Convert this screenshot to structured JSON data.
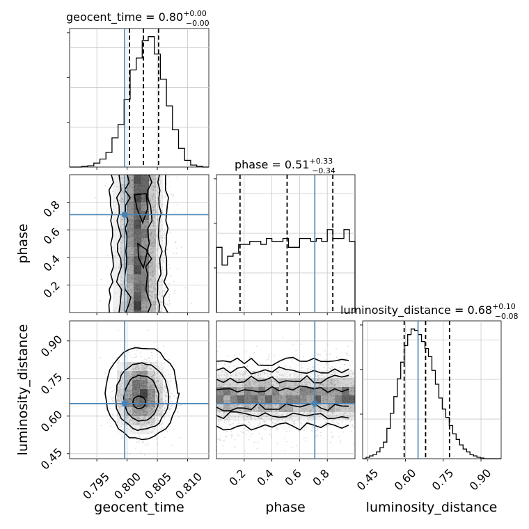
{
  "colors": {
    "truth": "#4682b4",
    "hist": "#000000",
    "quantile": "#000000",
    "grid": "#c8c8c8",
    "points": "#bdbdbd"
  },
  "chart_data": {
    "type": "corner",
    "grid": true,
    "parameters": [
      {
        "name": "geocent_time",
        "median": "0.80",
        "plus": "+0.00",
        "minus": "−0.00",
        "truth": 0.7996,
        "quantiles": [
          0.8004,
          0.8027,
          0.8052
        ],
        "ticks": [
          0.795,
          0.8,
          0.805,
          0.81
        ],
        "tick_labels": [
          "0.795",
          "0.800",
          "0.805",
          "0.810"
        ],
        "range": [
          0.7905,
          0.8135
        ]
      },
      {
        "name": "phase",
        "median": "0.51",
        "plus": "+0.33",
        "minus": "−0.34",
        "truth": 0.71,
        "quantiles": [
          0.17,
          0.51,
          0.84
        ],
        "ticks": [
          0.2,
          0.4,
          0.6,
          0.8
        ],
        "tick_labels": [
          "0.2",
          "0.4",
          "0.6",
          "0.8"
        ],
        "range": [
          0.0,
          1.0
        ]
      },
      {
        "name": "luminosity_distance",
        "median": "0.68",
        "plus": "+0.10",
        "minus": "−0.08",
        "truth": 0.65,
        "quantiles": [
          0.595,
          0.68,
          0.775
        ],
        "ticks": [
          0.45,
          0.6,
          0.75,
          0.9
        ],
        "tick_labels": [
          "0.45",
          "0.60",
          "0.75",
          "0.90"
        ],
        "range": [
          0.43,
          0.98
        ]
      }
    ],
    "histograms": [
      {
        "param": "geocent_time",
        "bins": [
          0.7905,
          0.7915,
          0.7925,
          0.7935,
          0.7945,
          0.7955,
          0.7965,
          0.7975,
          0.7985,
          0.7995,
          0.8005,
          0.8015,
          0.8025,
          0.8035,
          0.8045,
          0.8055,
          0.8065,
          0.8075,
          0.8085,
          0.8095,
          0.8105,
          0.8115,
          0.8125,
          0.8135
        ],
        "counts": [
          0,
          0,
          0.5,
          1,
          3,
          6,
          11,
          22,
          32,
          51,
          73,
          82,
          95,
          98,
          85,
          66,
          46,
          28,
          14,
          5,
          1.5,
          0.5,
          0
        ]
      },
      {
        "param": "phase",
        "bins": [
          0,
          0.04,
          0.08,
          0.12,
          0.16,
          0.2,
          0.24,
          0.28,
          0.32,
          0.36,
          0.4,
          0.44,
          0.48,
          0.52,
          0.56,
          0.6,
          0.64,
          0.68,
          0.72,
          0.76,
          0.8,
          0.84,
          0.88,
          0.92,
          0.96,
          1.0
        ],
        "counts": [
          82,
          76,
          79,
          80,
          83,
          83,
          84,
          84,
          83,
          85,
          84,
          84,
          85,
          82,
          82,
          85,
          85,
          84,
          85,
          84,
          88,
          85,
          85,
          88,
          84
        ]
      },
      {
        "param": "luminosity_distance",
        "bins": [
          0.43,
          0.44375,
          0.4575,
          0.47125,
          0.485,
          0.49875,
          0.5125,
          0.52625,
          0.54,
          0.55375,
          0.5675,
          0.58125,
          0.595,
          0.60875,
          0.6225,
          0.63625,
          0.65,
          0.66375,
          0.6775,
          0.69125,
          0.705,
          0.71875,
          0.7325,
          0.74625,
          0.76,
          0.77375,
          0.7875,
          0.80125,
          0.815,
          0.82875,
          0.8425,
          0.85625,
          0.87,
          0.88375,
          0.8975,
          0.91125,
          0.925,
          0.93875,
          0.9525,
          0.96625,
          0.98
        ],
        "counts": [
          0,
          1,
          2,
          3,
          5,
          8,
          12,
          22,
          33,
          45,
          58,
          70,
          82,
          90,
          94,
          93,
          90,
          85,
          80,
          74,
          64,
          54,
          44,
          36,
          30,
          24,
          18,
          14,
          10,
          7,
          5,
          3,
          2,
          1,
          0.5,
          0,
          0,
          0,
          0,
          0
        ]
      }
    ],
    "contours": [
      {
        "x": "geocent_time",
        "y": "phase"
      },
      {
        "x": "geocent_time",
        "y": "luminosity_distance"
      },
      {
        "x": "phase",
        "y": "luminosity_distance"
      }
    ]
  }
}
